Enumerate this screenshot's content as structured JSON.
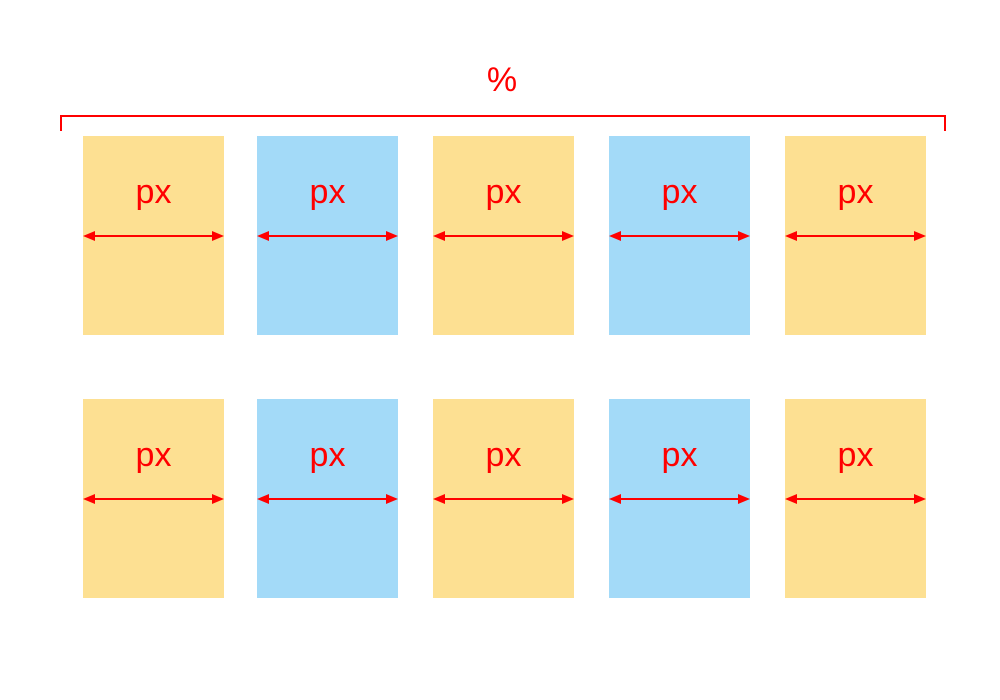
{
  "colors": {
    "annotation": "#ff0000",
    "warm_box": "#fde092",
    "cool_box": "#a3daf8",
    "background": "#ffffff"
  },
  "container": {
    "label": "%"
  },
  "rows": [
    {
      "boxes": [
        {
          "label": "px",
          "color": "warm"
        },
        {
          "label": "px",
          "color": "cool"
        },
        {
          "label": "px",
          "color": "warm"
        },
        {
          "label": "px",
          "color": "cool"
        },
        {
          "label": "px",
          "color": "warm"
        }
      ]
    },
    {
      "boxes": [
        {
          "label": "px",
          "color": "warm"
        },
        {
          "label": "px",
          "color": "cool"
        },
        {
          "label": "px",
          "color": "warm"
        },
        {
          "label": "px",
          "color": "cool"
        },
        {
          "label": "px",
          "color": "warm"
        }
      ]
    }
  ]
}
